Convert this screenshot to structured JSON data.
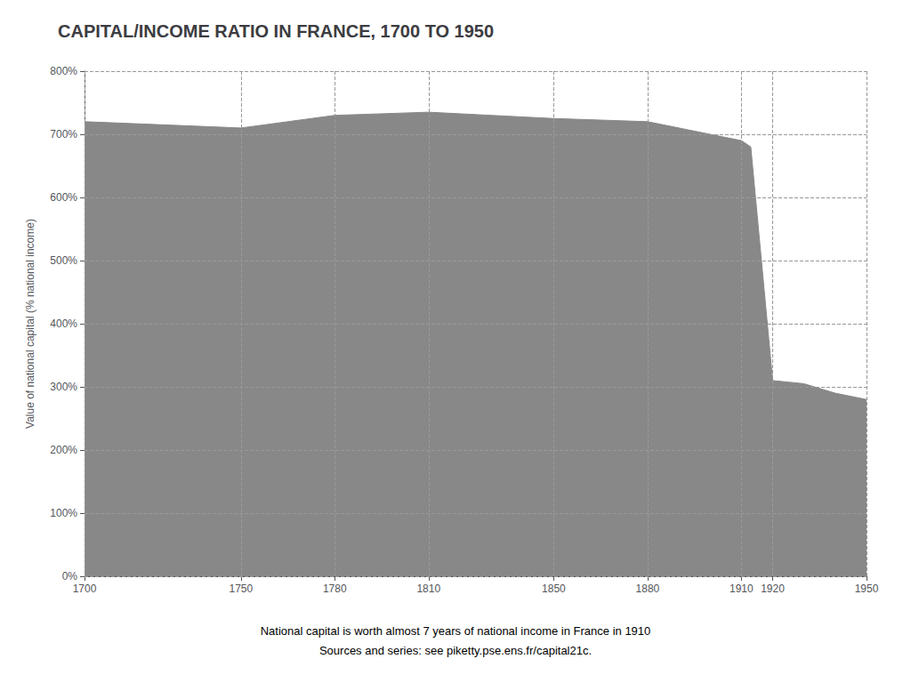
{
  "chart_data": {
    "type": "area",
    "title": "CAPITAL/INCOME RATIO IN FRANCE, 1700 TO 1950",
    "ylabel": "Value of national capital (% national income)",
    "annotations": [
      "National capital is worth almost 7 years of national income in France in 1910",
      "Sources and series: see piketty.pse.ens.fr/capital21c."
    ],
    "x": [
      1700,
      1750,
      1780,
      1810,
      1850,
      1880,
      1910,
      1913,
      1920,
      1930,
      1940,
      1950
    ],
    "values": [
      720,
      710,
      730,
      735,
      725,
      720,
      690,
      680,
      310,
      305,
      290,
      280
    ],
    "color": "#888888",
    "xlim": [
      1700,
      1950
    ],
    "ylim": [
      0,
      800
    ],
    "xticks": [
      1700,
      1750,
      1780,
      1810,
      1850,
      1880,
      1910,
      1920,
      1950
    ],
    "yticks": [
      {
        "value": 0,
        "label": "0%"
      },
      {
        "value": 100,
        "label": "100%"
      },
      {
        "value": 200,
        "label": "200%"
      },
      {
        "value": 300,
        "label": "300%"
      },
      {
        "value": 400,
        "label": "400%"
      },
      {
        "value": 500,
        "label": "500%"
      },
      {
        "value": 600,
        "label": "600%"
      },
      {
        "value": 700,
        "label": "700%"
      },
      {
        "value": 800,
        "label": "800%"
      }
    ],
    "grid": true
  }
}
